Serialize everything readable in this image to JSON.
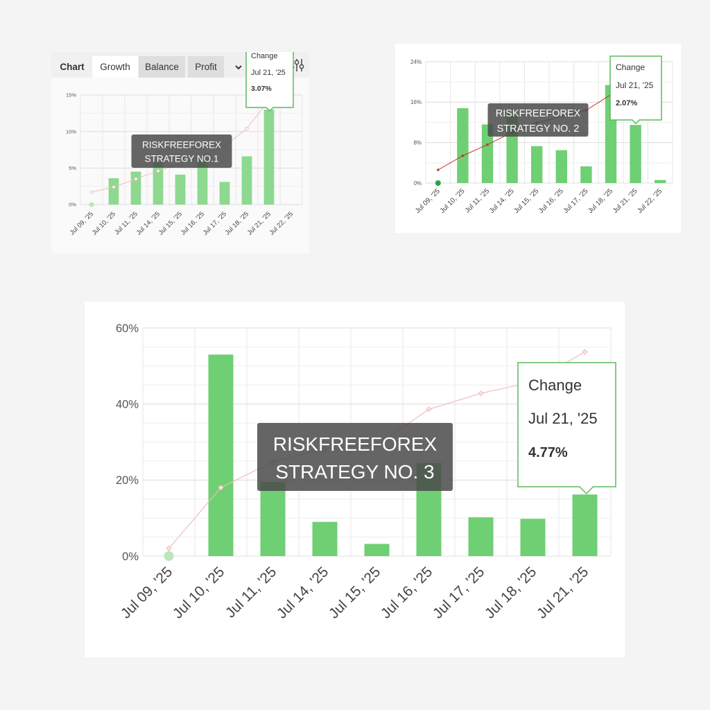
{
  "panels": [
    {
      "tabs": {
        "chart_label": "Chart",
        "growth_label": "Growth",
        "balance_label": "Balance",
        "profit_label": "Profit",
        "dropdown_icon": "chevron-down-icon",
        "filter_icon": "sliders-icon"
      }
    }
  ],
  "colors": {
    "bar": "#6fcf73",
    "bar_light": "#8cd98f",
    "line_faded": "#f2bcbc",
    "line_dark": "#c0392b",
    "grid": "#e6e6e6",
    "tooltip_border": "#5cb85c",
    "watermark_bg": "#4a4a4a",
    "marker_green": "#1fa84a"
  },
  "chart_data": [
    {
      "type": "bar",
      "watermark": [
        "RISKFREEFOREX",
        "STRATEGY NO.1"
      ],
      "categories": [
        "Jul 09, '25",
        "Jul 10, '25",
        "Jul 11, '25",
        "Jul 14, '25",
        "Jul 15, '25",
        "Jul 16, '25",
        "Jul 17, '25",
        "Jul 18, '25",
        "Jul 21, '25",
        "Jul 22, '25"
      ],
      "series": [
        {
          "type": "bar",
          "values": [
            0,
            3.6,
            4.5,
            5.8,
            4.1,
            6.4,
            3.1,
            6.6,
            13.0,
            null
          ]
        },
        {
          "type": "line",
          "values": [
            1.7,
            2.4,
            3.5,
            4.6,
            5.6,
            6.6,
            8.0,
            10.4,
            14.3,
            null
          ]
        }
      ],
      "yticks": [
        "0%",
        "5%",
        "10%",
        "15%"
      ],
      "ylim": [
        0,
        15
      ],
      "tooltip": {
        "title": "Change",
        "date": "Jul 21, '25",
        "value": "3.07%"
      },
      "grid": true
    },
    {
      "type": "bar",
      "watermark": [
        "RISKFREEFOREX",
        "STRATEGY NO. 2"
      ],
      "categories": [
        "Jul 09, '25",
        "Jul 10, '25",
        "Jul 11, '25",
        "Jul 14, '25",
        "Jul 15, '25",
        "Jul 16, '25",
        "Jul 17, '25",
        "Jul 18, '25",
        "Jul 21, '25",
        "Jul 22, '25"
      ],
      "series": [
        {
          "type": "bar",
          "values": [
            0,
            14.8,
            11.6,
            13.8,
            7.3,
            6.5,
            3.3,
            19.4,
            11.5,
            0.6
          ]
        },
        {
          "type": "line",
          "values": [
            2.6,
            5.4,
            7.6,
            10.0,
            11.9,
            13.2,
            14.4,
            17.5,
            null,
            null
          ]
        }
      ],
      "yticks": [
        "0%",
        "8%",
        "16%",
        "24%"
      ],
      "ylim": [
        0,
        24
      ],
      "tooltip": {
        "title": "Change",
        "date": "Jul 21, '25",
        "value": "2.07%"
      },
      "grid": true
    },
    {
      "type": "bar",
      "watermark": [
        "RISKFREEFOREX",
        "STRATEGY NO. 3"
      ],
      "categories": [
        "Jul 09, '25",
        "Jul 10, '25",
        "Jul 11, '25",
        "Jul 14, '25",
        "Jul 15, '25",
        "Jul 16, '25",
        "Jul 17, '25",
        "Jul 18, '25",
        "Jul 21, '25"
      ],
      "series": [
        {
          "type": "bar",
          "values": [
            0,
            53,
            19.5,
            9.0,
            3.2,
            24.5,
            10.2,
            9.8,
            16.2
          ]
        },
        {
          "type": "line",
          "values": [
            2.0,
            18.0,
            24.8,
            28.2,
            29.2,
            38.6,
            42.8,
            45.8,
            53.7
          ]
        }
      ],
      "yticks": [
        "0%",
        "20%",
        "40%",
        "60%"
      ],
      "ylim": [
        0,
        60
      ],
      "tooltip": {
        "title": "Change",
        "date": "Jul 21, '25",
        "value": "4.77%"
      },
      "grid": true
    }
  ]
}
